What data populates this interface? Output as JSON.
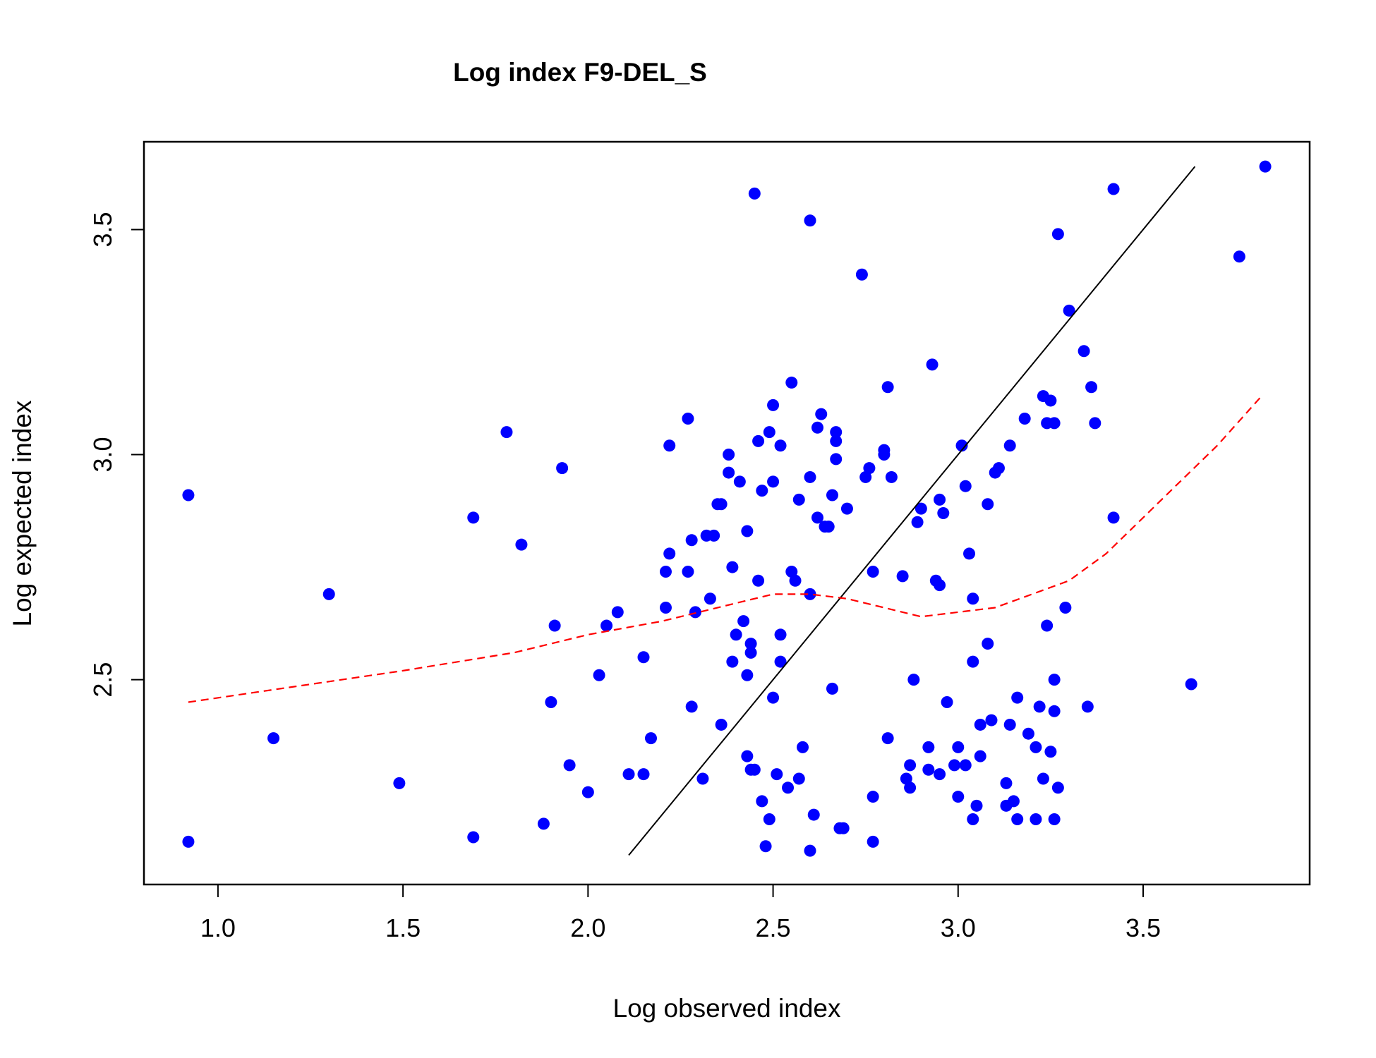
{
  "chart_data": {
    "type": "scatter",
    "title": "Log index F9-DEL_S",
    "xlabel": "Log observed index",
    "ylabel": "Log expected index",
    "xlim": [
      0.8,
      3.95
    ],
    "ylim": [
      2.045,
      3.695
    ],
    "x_ticks": [
      "1.0",
      "1.5",
      "2.0",
      "2.5",
      "3.0",
      "3.5"
    ],
    "y_ticks": [
      "2.5",
      "3.0",
      "3.5"
    ],
    "grid": false,
    "legend": "none",
    "colors": {
      "points": "#0000ff",
      "identity_line": "#000000",
      "smooth_line": "#ff0000"
    },
    "series": [
      {
        "type": "scatter",
        "marker": "filled-circle",
        "points": [
          [
            0.92,
            2.91
          ],
          [
            0.92,
            2.14
          ],
          [
            1.15,
            2.37
          ],
          [
            1.3,
            2.69
          ],
          [
            1.49,
            2.27
          ],
          [
            1.69,
            2.86
          ],
          [
            1.69,
            2.15
          ],
          [
            1.78,
            3.05
          ],
          [
            1.82,
            2.8
          ],
          [
            1.88,
            2.18
          ],
          [
            1.9,
            2.45
          ],
          [
            1.91,
            2.62
          ],
          [
            1.93,
            2.97
          ],
          [
            1.95,
            2.31
          ],
          [
            2.0,
            2.25
          ],
          [
            2.03,
            2.51
          ],
          [
            2.05,
            2.62
          ],
          [
            2.08,
            2.65
          ],
          [
            2.11,
            2.29
          ],
          [
            2.15,
            2.29
          ],
          [
            2.15,
            2.55
          ],
          [
            2.17,
            2.37
          ],
          [
            2.21,
            2.66
          ],
          [
            2.21,
            2.74
          ],
          [
            2.22,
            2.78
          ],
          [
            2.22,
            3.02
          ],
          [
            2.27,
            3.08
          ],
          [
            2.27,
            2.74
          ],
          [
            2.28,
            2.81
          ],
          [
            2.28,
            2.44
          ],
          [
            2.29,
            2.65
          ],
          [
            2.31,
            2.28
          ],
          [
            2.32,
            2.82
          ],
          [
            2.33,
            2.68
          ],
          [
            2.34,
            2.82
          ],
          [
            2.35,
            2.89
          ],
          [
            2.36,
            2.89
          ],
          [
            2.36,
            2.4
          ],
          [
            2.38,
            3.0
          ],
          [
            2.38,
            2.96
          ],
          [
            2.39,
            2.75
          ],
          [
            2.39,
            2.54
          ],
          [
            2.4,
            2.6
          ],
          [
            2.41,
            2.94
          ],
          [
            2.42,
            2.63
          ],
          [
            2.43,
            2.83
          ],
          [
            2.43,
            2.51
          ],
          [
            2.44,
            2.56
          ],
          [
            2.44,
            2.58
          ],
          [
            2.43,
            2.33
          ],
          [
            2.44,
            2.3
          ],
          [
            2.45,
            2.3
          ],
          [
            2.45,
            3.58
          ],
          [
            2.46,
            3.03
          ],
          [
            2.46,
            2.72
          ],
          [
            2.47,
            2.92
          ],
          [
            2.47,
            2.23
          ],
          [
            2.48,
            2.13
          ],
          [
            2.49,
            3.05
          ],
          [
            2.49,
            2.19
          ],
          [
            2.5,
            2.94
          ],
          [
            2.5,
            3.11
          ],
          [
            2.5,
            2.46
          ],
          [
            2.51,
            2.29
          ],
          [
            2.52,
            3.02
          ],
          [
            2.52,
            2.6
          ],
          [
            2.52,
            2.54
          ],
          [
            2.54,
            2.26
          ],
          [
            2.55,
            3.16
          ],
          [
            2.55,
            2.74
          ],
          [
            2.56,
            2.72
          ],
          [
            2.57,
            2.9
          ],
          [
            2.57,
            2.28
          ],
          [
            2.58,
            2.35
          ],
          [
            2.6,
            2.12
          ],
          [
            2.6,
            2.69
          ],
          [
            2.6,
            3.52
          ],
          [
            2.6,
            2.95
          ],
          [
            2.61,
            2.2
          ],
          [
            2.62,
            3.06
          ],
          [
            2.62,
            2.86
          ],
          [
            2.63,
            3.09
          ],
          [
            2.64,
            2.84
          ],
          [
            2.65,
            2.84
          ],
          [
            2.66,
            2.91
          ],
          [
            2.66,
            2.48
          ],
          [
            2.67,
            3.05
          ],
          [
            2.67,
            2.99
          ],
          [
            2.67,
            3.03
          ],
          [
            2.68,
            2.17
          ],
          [
            2.69,
            2.17
          ],
          [
            2.7,
            2.88
          ],
          [
            2.74,
            3.4
          ],
          [
            2.75,
            2.95
          ],
          [
            2.76,
            2.97
          ],
          [
            2.77,
            2.74
          ],
          [
            2.77,
            2.24
          ],
          [
            2.77,
            2.14
          ],
          [
            2.8,
            3.0
          ],
          [
            2.8,
            3.01
          ],
          [
            2.81,
            3.15
          ],
          [
            2.81,
            2.37
          ],
          [
            2.82,
            2.95
          ],
          [
            2.85,
            2.73
          ],
          [
            2.86,
            2.28
          ],
          [
            2.87,
            2.31
          ],
          [
            2.87,
            2.26
          ],
          [
            2.88,
            2.5
          ],
          [
            2.89,
            2.85
          ],
          [
            2.9,
            2.88
          ],
          [
            2.92,
            2.35
          ],
          [
            2.92,
            2.3
          ],
          [
            2.93,
            3.2
          ],
          [
            2.94,
            2.72
          ],
          [
            2.95,
            2.71
          ],
          [
            2.95,
            2.29
          ],
          [
            2.95,
            2.9
          ],
          [
            2.96,
            2.87
          ],
          [
            2.97,
            2.45
          ],
          [
            2.99,
            2.31
          ],
          [
            3.0,
            2.35
          ],
          [
            3.0,
            2.24
          ],
          [
            3.01,
            3.02
          ],
          [
            3.02,
            2.31
          ],
          [
            3.02,
            2.93
          ],
          [
            3.03,
            2.78
          ],
          [
            3.04,
            2.68
          ],
          [
            3.04,
            2.54
          ],
          [
            3.04,
            2.19
          ],
          [
            3.05,
            2.22
          ],
          [
            3.06,
            2.33
          ],
          [
            3.06,
            2.4
          ],
          [
            3.08,
            2.89
          ],
          [
            3.08,
            2.58
          ],
          [
            3.09,
            2.41
          ],
          [
            3.1,
            2.96
          ],
          [
            3.11,
            2.97
          ],
          [
            3.13,
            2.22
          ],
          [
            3.13,
            2.27
          ],
          [
            3.14,
            3.02
          ],
          [
            3.14,
            2.4
          ],
          [
            3.15,
            2.23
          ],
          [
            3.16,
            2.46
          ],
          [
            3.16,
            2.19
          ],
          [
            3.18,
            3.08
          ],
          [
            3.19,
            2.38
          ],
          [
            3.21,
            2.35
          ],
          [
            3.21,
            2.19
          ],
          [
            3.22,
            2.44
          ],
          [
            3.23,
            3.13
          ],
          [
            3.23,
            2.28
          ],
          [
            3.24,
            3.07
          ],
          [
            3.24,
            2.62
          ],
          [
            3.25,
            3.12
          ],
          [
            3.25,
            2.34
          ],
          [
            3.26,
            3.07
          ],
          [
            3.26,
            2.43
          ],
          [
            3.26,
            2.5
          ],
          [
            3.26,
            2.19
          ],
          [
            3.27,
            2.26
          ],
          [
            3.27,
            3.49
          ],
          [
            3.29,
            2.66
          ],
          [
            3.3,
            3.32
          ],
          [
            3.34,
            3.23
          ],
          [
            3.35,
            2.44
          ],
          [
            3.36,
            3.15
          ],
          [
            3.37,
            3.07
          ],
          [
            3.42,
            3.59
          ],
          [
            3.42,
            2.86
          ],
          [
            3.63,
            2.49
          ],
          [
            3.76,
            3.44
          ],
          [
            3.83,
            3.64
          ]
        ]
      },
      {
        "type": "line",
        "style": "solid",
        "color": "#000000",
        "x": [
          2.11,
          3.64
        ],
        "y": [
          2.11,
          3.64
        ]
      },
      {
        "type": "line",
        "style": "dashed",
        "color": "#ff0000",
        "x": [
          0.92,
          1.5,
          1.8,
          2.0,
          2.2,
          2.4,
          2.5,
          2.6,
          2.7,
          2.8,
          2.9,
          3.0,
          3.1,
          3.2,
          3.3,
          3.4,
          3.5,
          3.6,
          3.7,
          3.82
        ],
        "y": [
          2.45,
          2.52,
          2.56,
          2.6,
          2.63,
          2.67,
          2.69,
          2.69,
          2.68,
          2.66,
          2.64,
          2.65,
          2.66,
          2.69,
          2.72,
          2.78,
          2.86,
          2.94,
          3.02,
          3.13
        ]
      }
    ]
  }
}
